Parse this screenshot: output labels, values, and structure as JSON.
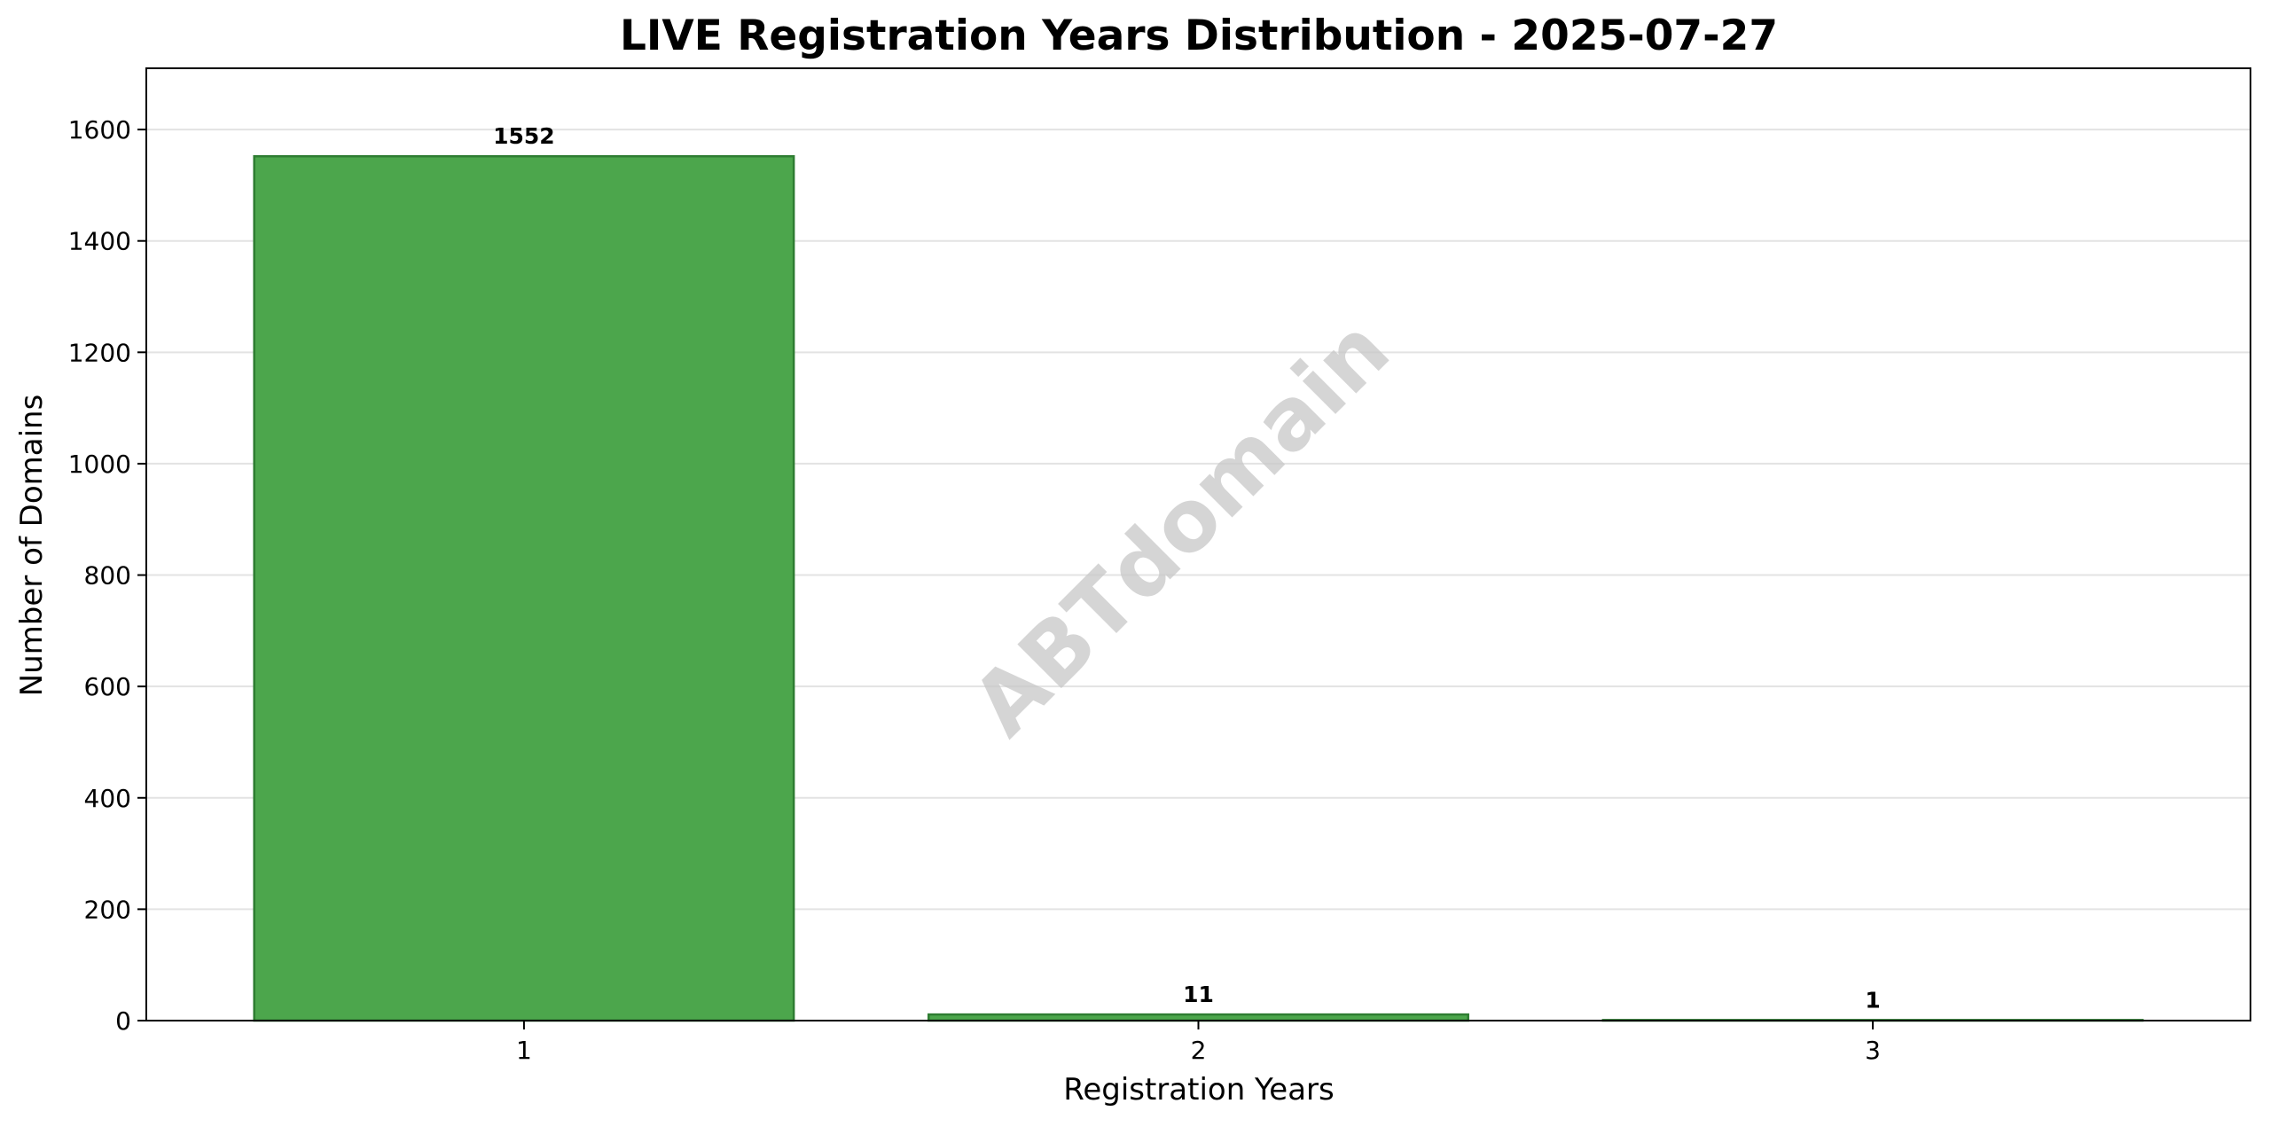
{
  "watermark": "ABTdomain",
  "colors": {
    "bar_fill": "#4ca64c",
    "bar_edge": "#2e7d32",
    "grid": "#e3e3e3",
    "watermark": "#c8c8c8"
  },
  "chart_data": {
    "type": "bar",
    "title": "LIVE Registration Years Distribution - 2025-07-27",
    "xlabel": "Registration Years",
    "ylabel": "Number of Domains",
    "categories": [
      "1",
      "2",
      "3"
    ],
    "values": [
      1552,
      11,
      1
    ],
    "data_labels": [
      "1552",
      "11",
      "1"
    ],
    "ylim": [
      0,
      1710
    ],
    "yticks": [
      0,
      200,
      400,
      600,
      800,
      1000,
      1200,
      1400,
      1600
    ],
    "grid": true,
    "grid_axis": "y"
  }
}
